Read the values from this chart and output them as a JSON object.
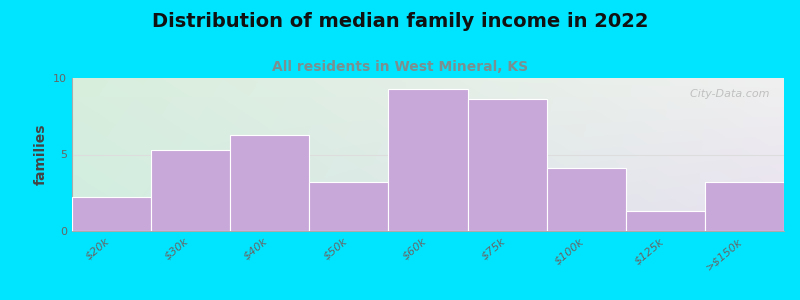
{
  "title": "Distribution of median family income in 2022",
  "subtitle": "All residents in West Mineral, KS",
  "categories": [
    "$20k",
    "$30k",
    "$40k",
    "$50k",
    "$60k",
    "$75k",
    "$100k",
    "$125k",
    ">$150k"
  ],
  "values": [
    2.2,
    5.3,
    6.3,
    3.2,
    9.3,
    8.6,
    4.1,
    1.3,
    3.2
  ],
  "bar_color": "#c8a8d8",
  "bar_edge_color": "#c8a8d8",
  "ylabel": "families",
  "ylim": [
    0,
    10
  ],
  "yticks": [
    0,
    5,
    10
  ],
  "bg_outer": "#00e5ff",
  "watermark": "  City-Data.com",
  "title_fontsize": 14,
  "subtitle_fontsize": 10,
  "ylabel_fontsize": 10,
  "tick_fontsize": 8,
  "subtitle_color": "#7a9090",
  "title_color": "#111111"
}
